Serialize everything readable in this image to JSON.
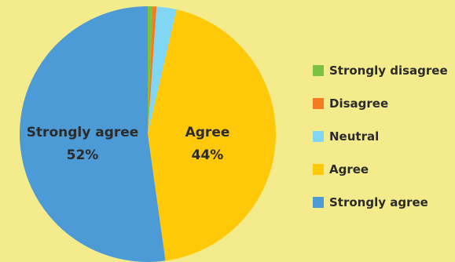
{
  "chart_data": {
    "type": "pie",
    "slices": [
      {
        "name": "Strongly disagree",
        "value": 0.6,
        "color": "#7cc242"
      },
      {
        "name": "Disagree",
        "value": 0.5,
        "color": "#f47c20"
      },
      {
        "name": "Neutral",
        "value": 2.5,
        "color": "#7fd6f5"
      },
      {
        "name": "Agree",
        "value": 44,
        "color": "#ffc808"
      },
      {
        "name": "Strongly agree",
        "value": 52,
        "color": "#4d9bd6"
      }
    ],
    "data_labels": [
      {
        "slice": "Agree",
        "name": "Agree",
        "percent": "44%"
      },
      {
        "slice": "Strongly agree",
        "name": "Strongly agree",
        "percent": "52%"
      }
    ],
    "legend": {
      "position": "right",
      "items": [
        "Strongly disagree",
        "Disagree",
        "Neutral",
        "Agree",
        "Strongly agree"
      ]
    }
  }
}
